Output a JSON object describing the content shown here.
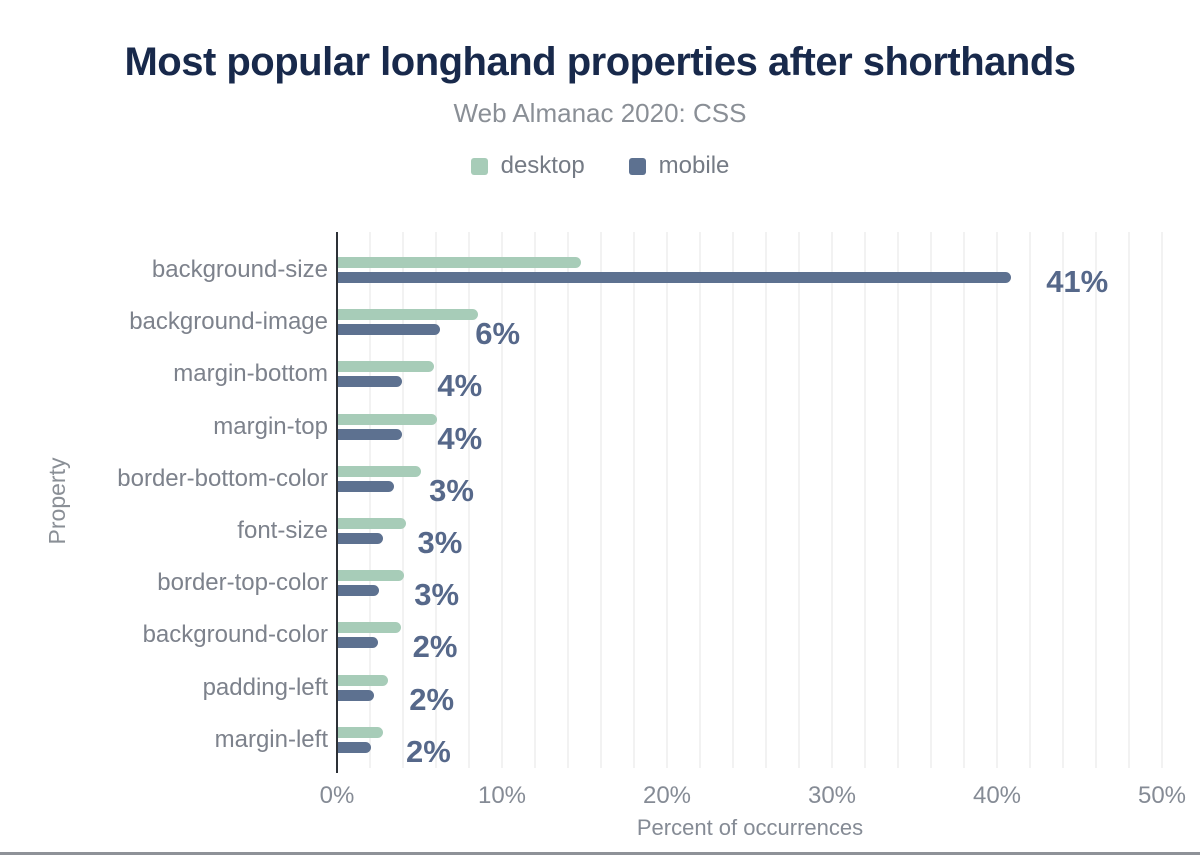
{
  "header": {
    "title": "Most popular longhand properties after shorthands",
    "subtitle": "Web Almanac 2020: CSS"
  },
  "legend": [
    {
      "label": "desktop",
      "color": "#a7ccb8"
    },
    {
      "label": "mobile",
      "color": "#5d7190"
    }
  ],
  "colors": {
    "title": "#18294b",
    "desktop_bar": "#a7ccb8",
    "mobile_bar": "#5d7190",
    "value_label": "#56688a",
    "axis_text": "#858b95",
    "gridline": "#f2f2f2",
    "axis_line": "#2d3137"
  },
  "chart_data": {
    "type": "bar",
    "orientation": "horizontal",
    "title": "Most popular longhand properties after shorthands",
    "subtitle": "Web Almanac 2020: CSS",
    "xlabel": "Percent of occurrences",
    "ylabel": "Property",
    "xlim": [
      0,
      50
    ],
    "x_ticks": [
      "0%",
      "10%",
      "20%",
      "30%",
      "40%",
      "50%"
    ],
    "grid_step_pct": 2,
    "grid": true,
    "legend_position": "top",
    "categories": [
      "background-size",
      "background-image",
      "margin-bottom",
      "margin-top",
      "border-bottom-color",
      "font-size",
      "border-top-color",
      "background-color",
      "padding-left",
      "margin-left"
    ],
    "series": [
      {
        "name": "desktop",
        "values": [
          14.7,
          8.5,
          5.8,
          6.0,
          5.0,
          4.1,
          4.0,
          3.8,
          3.0,
          2.7
        ]
      },
      {
        "name": "mobile",
        "values": [
          40.8,
          6.2,
          3.9,
          3.9,
          3.4,
          2.7,
          2.5,
          2.4,
          2.2,
          2.0
        ]
      }
    ],
    "value_labels": [
      "41%",
      "6%",
      "4%",
      "4%",
      "3%",
      "3%",
      "3%",
      "2%",
      "2%",
      "2%"
    ]
  }
}
